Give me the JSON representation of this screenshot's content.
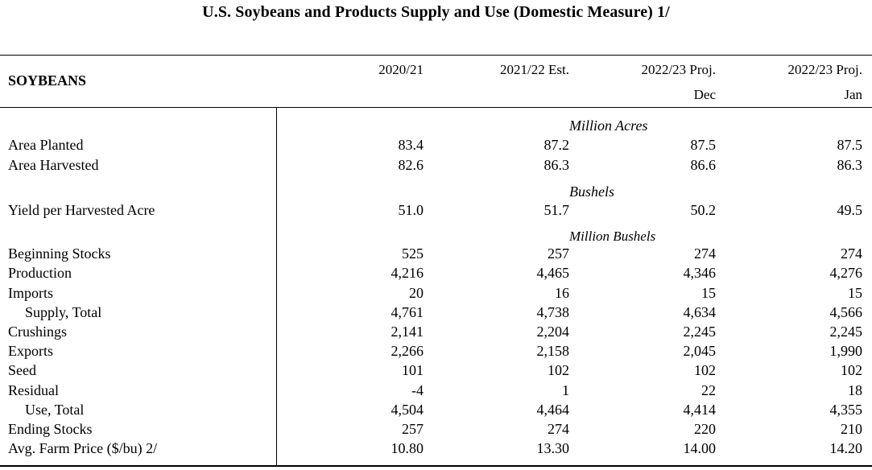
{
  "title": "U.S. Soybeans and Products Supply and Use (Domestic Measure)  1/",
  "stub_header": "SOYBEANS",
  "columns": [
    {
      "line1": "2020/21",
      "line2": ""
    },
    {
      "line1": "2021/22 Est.",
      "line2": ""
    },
    {
      "line1": "2022/23 Proj.",
      "line2": "Dec"
    },
    {
      "line1": "2022/23 Proj.",
      "line2": "Jan"
    }
  ],
  "units": {
    "acres": "Million Acres",
    "bushels": "Bushels",
    "million_bushels": "Million Bushels"
  },
  "rows": [
    {
      "label": "Area Planted",
      "values": [
        "83.4",
        "87.2",
        "87.5",
        "87.5"
      ]
    },
    {
      "label": "Area Harvested",
      "values": [
        "82.6",
        "86.3",
        "86.6",
        "86.3"
      ]
    },
    {
      "label": "Yield per Harvested Acre",
      "values": [
        "51.0",
        "51.7",
        "50.2",
        "49.5"
      ]
    },
    {
      "label": "Beginning Stocks",
      "values": [
        "525",
        "257",
        "274",
        "274"
      ]
    },
    {
      "label": "Production",
      "values": [
        "4,216",
        "4,465",
        "4,346",
        "4,276"
      ]
    },
    {
      "label": "Imports",
      "values": [
        "20",
        "16",
        "15",
        "15"
      ]
    },
    {
      "label": "Supply, Total",
      "values": [
        "4,761",
        "4,738",
        "4,634",
        "4,566"
      ]
    },
    {
      "label": "Crushings",
      "values": [
        "2,141",
        "2,204",
        "2,245",
        "2,245"
      ]
    },
    {
      "label": "Exports",
      "values": [
        "2,266",
        "2,158",
        "2,045",
        "1,990"
      ]
    },
    {
      "label": "Seed",
      "values": [
        "101",
        "102",
        "102",
        "102"
      ]
    },
    {
      "label": "Residual",
      "values": [
        "-4",
        "1",
        "22",
        "18"
      ]
    },
    {
      "label": "Use, Total",
      "values": [
        "4,504",
        "4,464",
        "4,414",
        "4,355"
      ]
    },
    {
      "label": "Ending Stocks",
      "values": [
        "257",
        "274",
        "220",
        "210"
      ]
    },
    {
      "label": "Avg. Farm Price ($/bu)  2/",
      "values": [
        "10.80",
        "13.30",
        "14.00",
        "14.20"
      ]
    }
  ]
}
